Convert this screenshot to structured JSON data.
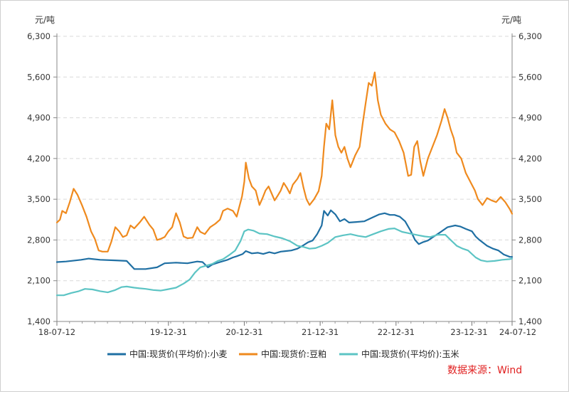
{
  "chart_data": {
    "type": "line",
    "title": "",
    "y_unit_left": "元/吨",
    "y_unit_right": "元/吨",
    "ylim": [
      1400,
      6300
    ],
    "y_ticks": [
      "1,400",
      "2,100",
      "2,800",
      "3,500",
      "4,200",
      "4,900",
      "5,600",
      "6,300"
    ],
    "y_tick_values": [
      1400,
      2100,
      2800,
      3500,
      4200,
      4900,
      5600,
      6300
    ],
    "x_ticks": [
      "18-07-12",
      "19-12-31",
      "20-12-31",
      "21-12-31",
      "22-12-31",
      "23-12-31",
      "24-07-12"
    ],
    "x_tick_values": [
      2018.53,
      2020.0,
      2021.0,
      2022.0,
      2023.0,
      2024.0,
      2024.53
    ],
    "xlim": [
      2018.53,
      2024.53
    ],
    "grid": true,
    "legend_position": "bottom",
    "source_text": "数据来源：Wind",
    "series": [
      {
        "name": "中国:现货价(平均价):小麦",
        "color": "#1f6fa3",
        "points": [
          [
            2018.53,
            2420
          ],
          [
            2018.65,
            2430
          ],
          [
            2018.85,
            2460
          ],
          [
            2018.95,
            2480
          ],
          [
            2019.1,
            2460
          ],
          [
            2019.3,
            2450
          ],
          [
            2019.45,
            2440
          ],
          [
            2019.5,
            2370
          ],
          [
            2019.55,
            2300
          ],
          [
            2019.7,
            2300
          ],
          [
            2019.85,
            2330
          ],
          [
            2019.95,
            2400
          ],
          [
            2020.1,
            2410
          ],
          [
            2020.25,
            2400
          ],
          [
            2020.38,
            2430
          ],
          [
            2020.45,
            2420
          ],
          [
            2020.52,
            2330
          ],
          [
            2020.58,
            2380
          ],
          [
            2020.68,
            2420
          ],
          [
            2020.78,
            2460
          ],
          [
            2020.85,
            2500
          ],
          [
            2020.9,
            2520
          ],
          [
            2020.98,
            2560
          ],
          [
            2021.02,
            2610
          ],
          [
            2021.1,
            2570
          ],
          [
            2021.18,
            2580
          ],
          [
            2021.25,
            2560
          ],
          [
            2021.33,
            2590
          ],
          [
            2021.4,
            2570
          ],
          [
            2021.48,
            2600
          ],
          [
            2021.55,
            2610
          ],
          [
            2021.62,
            2620
          ],
          [
            2021.7,
            2650
          ],
          [
            2021.78,
            2710
          ],
          [
            2021.84,
            2760
          ],
          [
            2021.9,
            2790
          ],
          [
            2021.96,
            2900
          ],
          [
            2022.02,
            3050
          ],
          [
            2022.05,
            3300
          ],
          [
            2022.1,
            3220
          ],
          [
            2022.14,
            3310
          ],
          [
            2022.2,
            3240
          ],
          [
            2022.26,
            3120
          ],
          [
            2022.32,
            3160
          ],
          [
            2022.38,
            3100
          ],
          [
            2022.48,
            3110
          ],
          [
            2022.58,
            3120
          ],
          [
            2022.68,
            3180
          ],
          [
            2022.78,
            3240
          ],
          [
            2022.85,
            3260
          ],
          [
            2022.92,
            3230
          ],
          [
            2022.98,
            3230
          ],
          [
            2023.05,
            3200
          ],
          [
            2023.12,
            3120
          ],
          [
            2023.2,
            2940
          ],
          [
            2023.25,
            2800
          ],
          [
            2023.3,
            2730
          ],
          [
            2023.35,
            2760
          ],
          [
            2023.42,
            2790
          ],
          [
            2023.5,
            2860
          ],
          [
            2023.58,
            2930
          ],
          [
            2023.68,
            3020
          ],
          [
            2023.78,
            3050
          ],
          [
            2023.85,
            3030
          ],
          [
            2023.92,
            2990
          ],
          [
            2024.0,
            2950
          ],
          [
            2024.05,
            2860
          ],
          [
            2024.1,
            2800
          ],
          [
            2024.2,
            2700
          ],
          [
            2024.28,
            2650
          ],
          [
            2024.35,
            2620
          ],
          [
            2024.42,
            2550
          ],
          [
            2024.5,
            2510
          ],
          [
            2024.53,
            2510
          ]
        ]
      },
      {
        "name": "中国:现货价:豆粕",
        "color": "#ef8a1e",
        "points": [
          [
            2018.53,
            3100
          ],
          [
            2018.57,
            3150
          ],
          [
            2018.6,
            3300
          ],
          [
            2018.65,
            3260
          ],
          [
            2018.7,
            3450
          ],
          [
            2018.75,
            3680
          ],
          [
            2018.8,
            3580
          ],
          [
            2018.86,
            3400
          ],
          [
            2018.92,
            3200
          ],
          [
            2018.98,
            2950
          ],
          [
            2019.03,
            2820
          ],
          [
            2019.08,
            2620
          ],
          [
            2019.13,
            2600
          ],
          [
            2019.2,
            2600
          ],
          [
            2019.25,
            2780
          ],
          [
            2019.3,
            3020
          ],
          [
            2019.35,
            2950
          ],
          [
            2019.4,
            2850
          ],
          [
            2019.45,
            2880
          ],
          [
            2019.5,
            3050
          ],
          [
            2019.55,
            3000
          ],
          [
            2019.62,
            3100
          ],
          [
            2019.68,
            3200
          ],
          [
            2019.75,
            3060
          ],
          [
            2019.8,
            2980
          ],
          [
            2019.85,
            2800
          ],
          [
            2019.9,
            2820
          ],
          [
            2019.95,
            2850
          ],
          [
            2020.0,
            2950
          ],
          [
            2020.05,
            3020
          ],
          [
            2020.1,
            3260
          ],
          [
            2020.15,
            3100
          ],
          [
            2020.2,
            2860
          ],
          [
            2020.25,
            2830
          ],
          [
            2020.32,
            2840
          ],
          [
            2020.38,
            3020
          ],
          [
            2020.42,
            2940
          ],
          [
            2020.48,
            2900
          ],
          [
            2020.55,
            3020
          ],
          [
            2020.62,
            3080
          ],
          [
            2020.68,
            3150
          ],
          [
            2020.72,
            3300
          ],
          [
            2020.78,
            3340
          ],
          [
            2020.85,
            3300
          ],
          [
            2020.9,
            3200
          ],
          [
            2020.94,
            3400
          ],
          [
            2020.97,
            3550
          ],
          [
            2021.0,
            3800
          ],
          [
            2021.02,
            4130
          ],
          [
            2021.06,
            3860
          ],
          [
            2021.1,
            3720
          ],
          [
            2021.15,
            3650
          ],
          [
            2021.2,
            3400
          ],
          [
            2021.24,
            3520
          ],
          [
            2021.28,
            3650
          ],
          [
            2021.32,
            3720
          ],
          [
            2021.36,
            3600
          ],
          [
            2021.4,
            3480
          ],
          [
            2021.44,
            3560
          ],
          [
            2021.48,
            3650
          ],
          [
            2021.52,
            3780
          ],
          [
            2021.56,
            3700
          ],
          [
            2021.6,
            3600
          ],
          [
            2021.64,
            3750
          ],
          [
            2021.7,
            3850
          ],
          [
            2021.74,
            3950
          ],
          [
            2021.78,
            3700
          ],
          [
            2021.82,
            3500
          ],
          [
            2021.86,
            3400
          ],
          [
            2021.92,
            3500
          ],
          [
            2021.98,
            3640
          ],
          [
            2022.02,
            3900
          ],
          [
            2022.05,
            4400
          ],
          [
            2022.08,
            4800
          ],
          [
            2022.12,
            4700
          ],
          [
            2022.16,
            5200
          ],
          [
            2022.2,
            4600
          ],
          [
            2022.24,
            4400
          ],
          [
            2022.28,
            4300
          ],
          [
            2022.32,
            4400
          ],
          [
            2022.36,
            4200
          ],
          [
            2022.4,
            4050
          ],
          [
            2022.46,
            4250
          ],
          [
            2022.52,
            4400
          ],
          [
            2022.56,
            4800
          ],
          [
            2022.6,
            5150
          ],
          [
            2022.64,
            5500
          ],
          [
            2022.68,
            5450
          ],
          [
            2022.72,
            5680
          ],
          [
            2022.76,
            5200
          ],
          [
            2022.8,
            4950
          ],
          [
            2022.86,
            4800
          ],
          [
            2022.92,
            4700
          ],
          [
            2022.98,
            4650
          ],
          [
            2023.04,
            4500
          ],
          [
            2023.1,
            4300
          ],
          [
            2023.16,
            3900
          ],
          [
            2023.2,
            3920
          ],
          [
            2023.24,
            4400
          ],
          [
            2023.28,
            4500
          ],
          [
            2023.32,
            4150
          ],
          [
            2023.36,
            3900
          ],
          [
            2023.42,
            4200
          ],
          [
            2023.48,
            4400
          ],
          [
            2023.54,
            4600
          ],
          [
            2023.6,
            4850
          ],
          [
            2023.64,
            5050
          ],
          [
            2023.68,
            4900
          ],
          [
            2023.72,
            4700
          ],
          [
            2023.76,
            4550
          ],
          [
            2023.8,
            4300
          ],
          [
            2023.86,
            4200
          ],
          [
            2023.92,
            3950
          ],
          [
            2023.98,
            3800
          ],
          [
            2024.04,
            3650
          ],
          [
            2024.08,
            3500
          ],
          [
            2024.14,
            3400
          ],
          [
            2024.2,
            3520
          ],
          [
            2024.26,
            3480
          ],
          [
            2024.32,
            3450
          ],
          [
            2024.38,
            3540
          ],
          [
            2024.44,
            3450
          ],
          [
            2024.5,
            3330
          ],
          [
            2024.53,
            3250
          ]
        ]
      },
      {
        "name": "中国:现货价(平均价):玉米",
        "color": "#5cc4c4",
        "points": [
          [
            2018.53,
            1850
          ],
          [
            2018.62,
            1850
          ],
          [
            2018.72,
            1890
          ],
          [
            2018.82,
            1920
          ],
          [
            2018.9,
            1960
          ],
          [
            2019.0,
            1950
          ],
          [
            2019.1,
            1920
          ],
          [
            2019.2,
            1900
          ],
          [
            2019.3,
            1940
          ],
          [
            2019.38,
            1990
          ],
          [
            2019.45,
            2000
          ],
          [
            2019.55,
            1980
          ],
          [
            2019.62,
            1970
          ],
          [
            2019.7,
            1960
          ],
          [
            2019.8,
            1940
          ],
          [
            2019.9,
            1930
          ],
          [
            2019.98,
            1950
          ],
          [
            2020.1,
            1980
          ],
          [
            2020.2,
            2050
          ],
          [
            2020.28,
            2120
          ],
          [
            2020.35,
            2240
          ],
          [
            2020.42,
            2330
          ],
          [
            2020.5,
            2360
          ],
          [
            2020.58,
            2390
          ],
          [
            2020.65,
            2440
          ],
          [
            2020.72,
            2470
          ],
          [
            2020.8,
            2540
          ],
          [
            2020.88,
            2620
          ],
          [
            2020.95,
            2780
          ],
          [
            2021.0,
            2950
          ],
          [
            2021.05,
            2980
          ],
          [
            2021.12,
            2960
          ],
          [
            2021.2,
            2910
          ],
          [
            2021.3,
            2900
          ],
          [
            2021.4,
            2860
          ],
          [
            2021.5,
            2830
          ],
          [
            2021.6,
            2780
          ],
          [
            2021.7,
            2700
          ],
          [
            2021.78,
            2680
          ],
          [
            2021.86,
            2650
          ],
          [
            2021.94,
            2660
          ],
          [
            2022.02,
            2700
          ],
          [
            2022.1,
            2750
          ],
          [
            2022.2,
            2850
          ],
          [
            2022.3,
            2880
          ],
          [
            2022.4,
            2900
          ],
          [
            2022.5,
            2870
          ],
          [
            2022.6,
            2850
          ],
          [
            2022.7,
            2900
          ],
          [
            2022.8,
            2950
          ],
          [
            2022.9,
            2990
          ],
          [
            2022.98,
            3000
          ],
          [
            2023.08,
            2940
          ],
          [
            2023.15,
            2920
          ],
          [
            2023.22,
            2900
          ],
          [
            2023.3,
            2880
          ],
          [
            2023.38,
            2860
          ],
          [
            2023.45,
            2850
          ],
          [
            2023.55,
            2890
          ],
          [
            2023.65,
            2890
          ],
          [
            2023.72,
            2800
          ],
          [
            2023.8,
            2700
          ],
          [
            2023.88,
            2650
          ],
          [
            2023.95,
            2620
          ],
          [
            2024.05,
            2500
          ],
          [
            2024.12,
            2450
          ],
          [
            2024.2,
            2430
          ],
          [
            2024.3,
            2440
          ],
          [
            2024.4,
            2460
          ],
          [
            2024.5,
            2470
          ],
          [
            2024.53,
            2480
          ]
        ]
      }
    ]
  }
}
